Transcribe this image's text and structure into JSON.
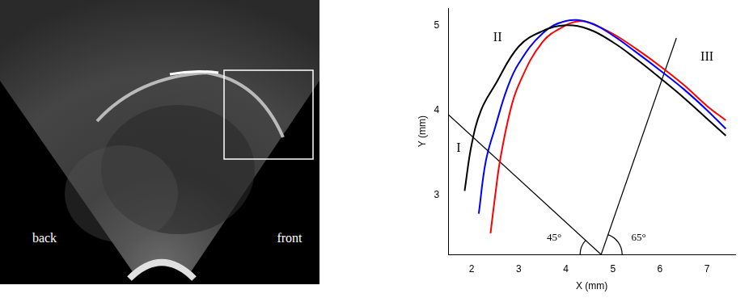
{
  "image_labels": [
    "back",
    "front"
  ],
  "chart_data": {
    "type": "line",
    "x_label": "X (mm)",
    "y_label": "Y (mm)",
    "xlim": [
      1.5,
      7.6
    ],
    "xticks": [
      2,
      3,
      4,
      5,
      6,
      7
    ],
    "ylim": [
      2.3,
      5.2
    ],
    "yticks": [
      3,
      4,
      5
    ],
    "grid": false,
    "series": [
      {
        "color": "#000000",
        "x": [
          1.85,
          2.0,
          2.2,
          2.5,
          3.0,
          3.5,
          4.0,
          4.5,
          5.0,
          5.5,
          6.0,
          6.5,
          7.0,
          7.4
        ],
        "values": [
          3.05,
          3.6,
          4.0,
          4.3,
          4.75,
          4.93,
          5.0,
          4.95,
          4.8,
          4.6,
          4.38,
          4.15,
          3.9,
          3.7
        ]
      },
      {
        "color": "#0000ff",
        "x": [
          2.15,
          2.3,
          2.5,
          2.75,
          3.0,
          3.5,
          4.0,
          4.5,
          5.0,
          5.5,
          6.0,
          6.5,
          7.0,
          7.4
        ],
        "values": [
          2.78,
          3.4,
          3.8,
          4.25,
          4.55,
          4.9,
          5.05,
          5.03,
          4.88,
          4.68,
          4.47,
          4.25,
          4.0,
          3.78
        ]
      },
      {
        "color": "#ff0000",
        "x": [
          2.4,
          2.5,
          2.6,
          2.8,
          3.0,
          3.5,
          4.0,
          4.3,
          4.5,
          5.0,
          5.5,
          6.0,
          6.5,
          7.0,
          7.4
        ],
        "values": [
          2.55,
          3.0,
          3.4,
          3.95,
          4.3,
          4.8,
          5.0,
          5.05,
          5.03,
          4.9,
          4.72,
          4.52,
          4.3,
          4.05,
          3.88
        ]
      }
    ],
    "lines": [
      {
        "color": "#000000",
        "x": [
          4.75,
          1.5
        ],
        "values": [
          2.3,
          3.95
        ]
      },
      {
        "color": "#000000",
        "x": [
          4.75,
          6.35
        ],
        "values": [
          2.3,
          4.85
        ]
      }
    ],
    "annotations": [
      {
        "text": "I",
        "x": 1.72,
        "y": 3.55
      },
      {
        "text": "II",
        "x": 2.55,
        "y": 4.85
      },
      {
        "text": "III",
        "x": 7.0,
        "y": 4.62
      },
      {
        "text": "45°",
        "x": 3.75,
        "y": 2.5
      },
      {
        "text": "65°",
        "x": 5.55,
        "y": 2.5
      }
    ]
  }
}
